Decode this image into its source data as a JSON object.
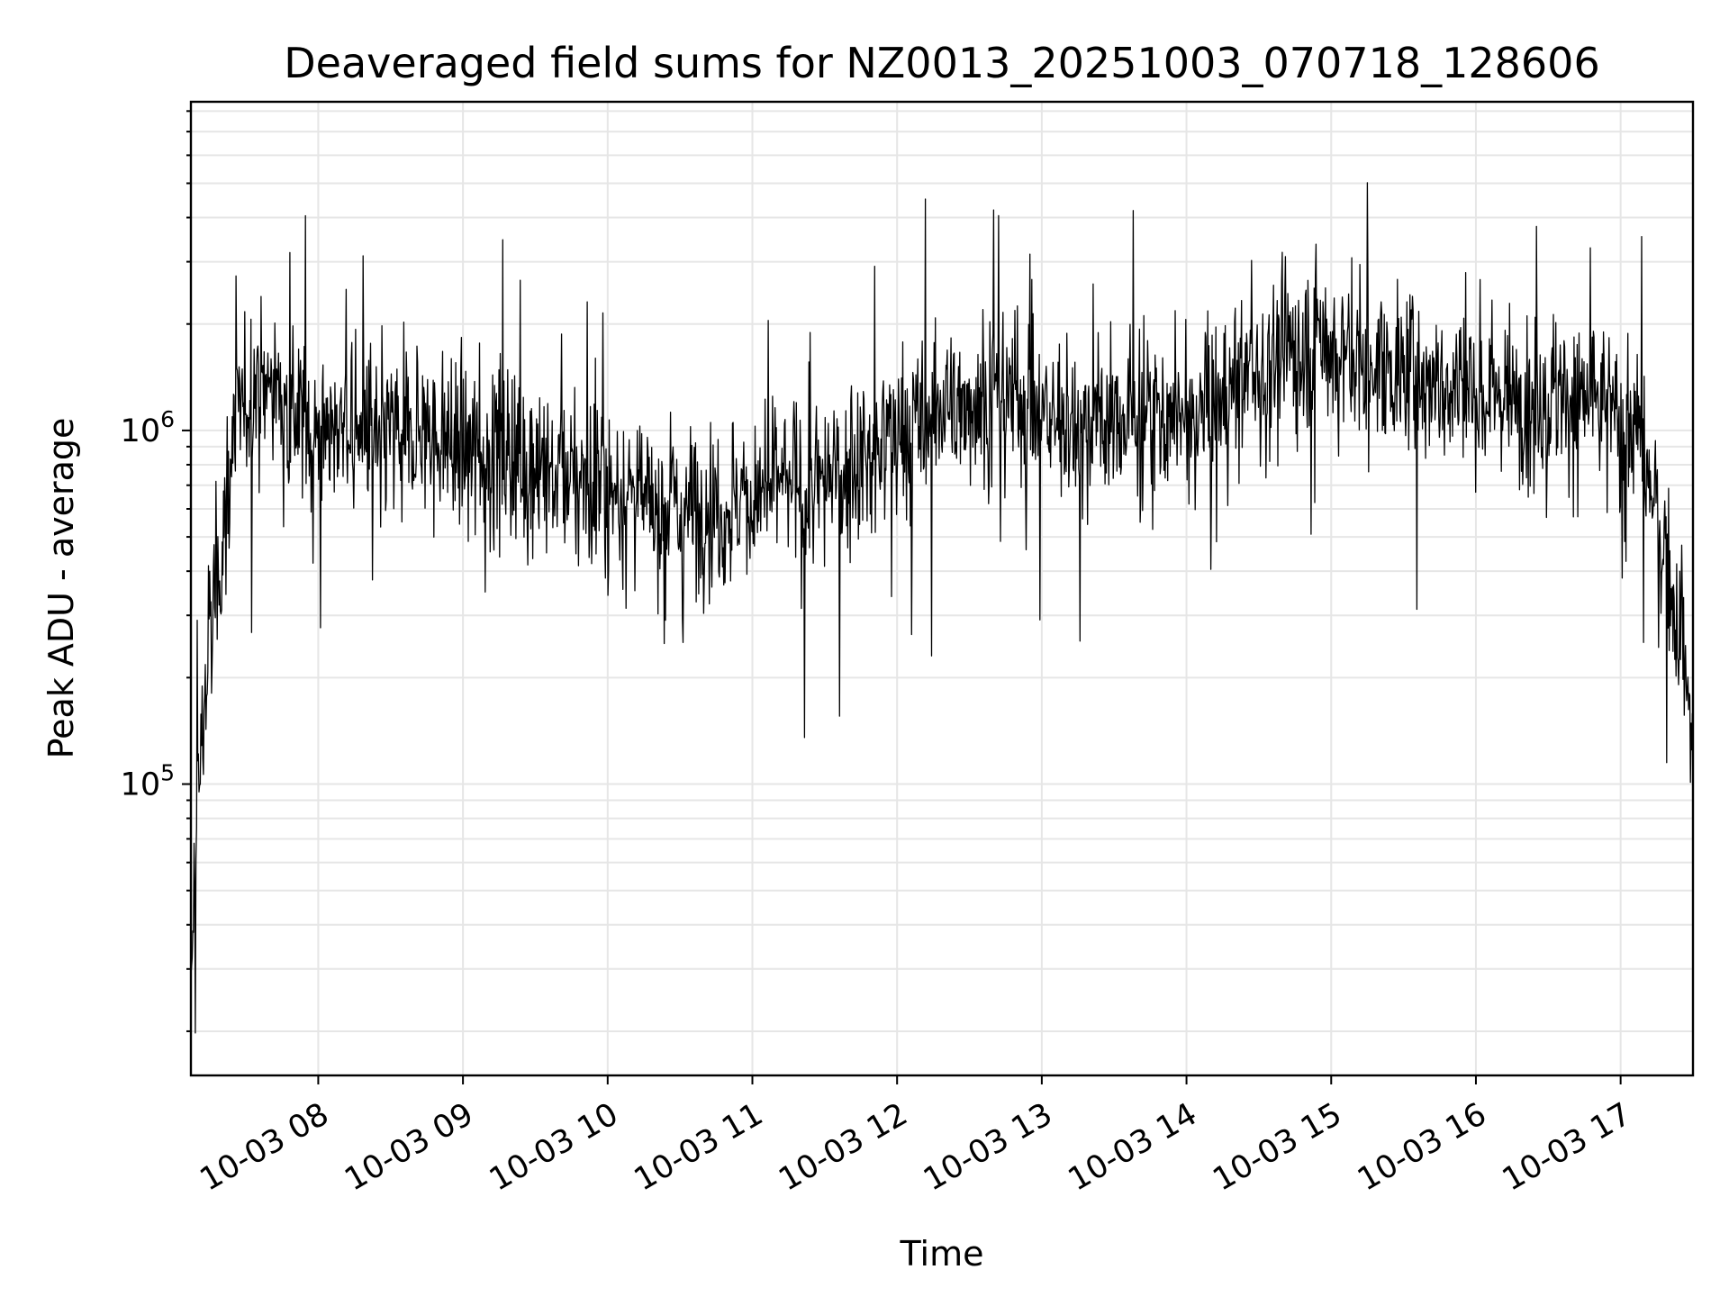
{
  "chart_data": {
    "type": "line",
    "title": "Deaveraged field sums for NZ0013_20251003_070718_128606",
    "xlabel": "Time",
    "ylabel": "Peak ADU - average",
    "yscale": "log",
    "ylim": [
      15000,
      8500000
    ],
    "xlim_hours": [
      7.12,
      17.5
    ],
    "grid": true,
    "line_color": "#000000",
    "grid_color": "#e6e6e6",
    "x_ticks": [
      {
        "hour": 8,
        "label": "10-03 08"
      },
      {
        "hour": 9,
        "label": "10-03 09"
      },
      {
        "hour": 10,
        "label": "10-03 10"
      },
      {
        "hour": 11,
        "label": "10-03 11"
      },
      {
        "hour": 12,
        "label": "10-03 12"
      },
      {
        "hour": 13,
        "label": "10-03 13"
      },
      {
        "hour": 14,
        "label": "10-03 14"
      },
      {
        "hour": 15,
        "label": "10-03 15"
      },
      {
        "hour": 16,
        "label": "10-03 16"
      },
      {
        "hour": 17,
        "label": "10-03 17"
      }
    ],
    "y_ticks": [
      {
        "value": 100000,
        "base": "10",
        "exp": "5"
      },
      {
        "value": 1000000,
        "base": "10",
        "exp": "6"
      }
    ],
    "series": [
      {
        "name": "Peak ADU - average",
        "x_hours": [
          7.12,
          7.15,
          7.2,
          7.25,
          7.3,
          7.35,
          7.4,
          7.5,
          7.6,
          7.7,
          7.8,
          7.9,
          8.0,
          8.2,
          8.4,
          8.6,
          8.8,
          9.0,
          9.3,
          9.6,
          9.9,
          10.2,
          10.5,
          10.8,
          11.0,
          11.2,
          11.4,
          11.6,
          11.8,
          12.0,
          12.3,
          12.6,
          12.9,
          13.2,
          13.5,
          13.8,
          14.1,
          14.4,
          14.7,
          14.9,
          15.0,
          15.2,
          15.5,
          15.8,
          16.1,
          16.4,
          16.7,
          17.0,
          17.15,
          17.25,
          17.35,
          17.45,
          17.5
        ],
        "y_typical": [
          20000,
          70000,
          150000,
          250000,
          350000,
          550000,
          900000,
          1200000,
          1400000,
          1300000,
          1200000,
          1100000,
          1000000,
          1000000,
          950000,
          1000000,
          950000,
          900000,
          850000,
          750000,
          700000,
          650000,
          600000,
          600000,
          650000,
          700000,
          650000,
          750000,
          850000,
          950000,
          1100000,
          1300000,
          1200000,
          1000000,
          1050000,
          1100000,
          1100000,
          1400000,
          1600000,
          1800000,
          1700000,
          1600000,
          1450000,
          1350000,
          1300000,
          1250000,
          1250000,
          1100000,
          900000,
          600000,
          350000,
          200000,
          120000
        ]
      }
    ]
  }
}
